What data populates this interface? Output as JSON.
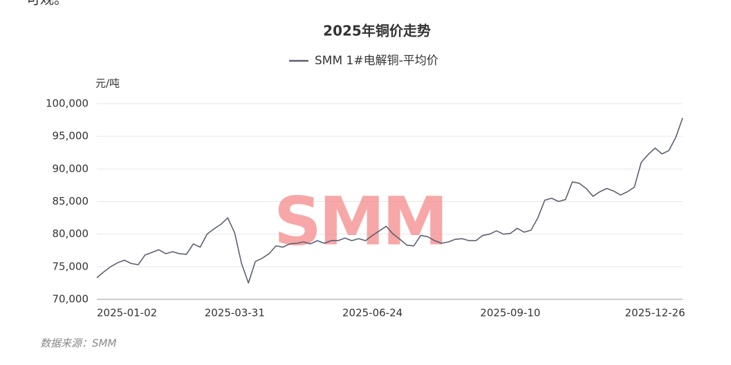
{
  "page_fragment": "可观。",
  "chart_data": {
    "type": "line",
    "title": "2025年铜价走势",
    "y_unit_label": "元/吨",
    "source": "数据来源：SMM",
    "watermark": "SMM",
    "categories": [
      "2025-01-02",
      null,
      null,
      null,
      null,
      null,
      null,
      null,
      null,
      null,
      null,
      null,
      null,
      null,
      null,
      null,
      null,
      null,
      null,
      null,
      "2025-03-31",
      null,
      null,
      null,
      null,
      null,
      null,
      null,
      null,
      null,
      null,
      null,
      null,
      null,
      null,
      null,
      null,
      null,
      null,
      null,
      "2025-06-24",
      null,
      null,
      null,
      null,
      null,
      null,
      null,
      null,
      null,
      null,
      null,
      null,
      null,
      null,
      null,
      null,
      null,
      null,
      null,
      "2025-09-10",
      null,
      null,
      null,
      null,
      null,
      null,
      null,
      null,
      null,
      null,
      null,
      null,
      null,
      null,
      null,
      null,
      null,
      null,
      null,
      null,
      "2025-12-26",
      null,
      null,
      null,
      null
    ],
    "series": [
      {
        "name": "SMM 1#电解铜-平均价",
        "color": "#5b5f71",
        "values": [
          73300,
          74200,
          75000,
          75600,
          76000,
          75500,
          75300,
          76800,
          77200,
          77600,
          77000,
          77300,
          77000,
          76900,
          78500,
          78000,
          80000,
          80800,
          81500,
          82500,
          80200,
          75500,
          72500,
          75800,
          76300,
          77000,
          78200,
          78000,
          78500,
          78600,
          78800,
          78500,
          79000,
          78600,
          79000,
          79000,
          79400,
          79000,
          79300,
          79000,
          79800,
          80500,
          81200,
          80000,
          79200,
          78300,
          78200,
          79800,
          79600,
          79000,
          78600,
          78800,
          79200,
          79300,
          79000,
          79000,
          79800,
          80000,
          80500,
          80000,
          80100,
          80900,
          80300,
          80600,
          82500,
          85200,
          85500,
          85000,
          85300,
          88000,
          87800,
          87000,
          85800,
          86500,
          87000,
          86600,
          86000,
          86500,
          87200,
          91000,
          92200,
          93200,
          92300,
          92800,
          94800,
          97800
        ]
      }
    ],
    "ylim": [
      70000,
      100000
    ],
    "yticks": [
      {
        "value": 70000,
        "label": "70,000"
      },
      {
        "value": 75000,
        "label": "75,000"
      },
      {
        "value": 80000,
        "label": "80,000"
      },
      {
        "value": 85000,
        "label": "85,000"
      },
      {
        "value": 90000,
        "label": "90,000"
      },
      {
        "value": 95000,
        "label": "95,000"
      },
      {
        "value": 100000,
        "label": "100,000"
      }
    ],
    "grid": true
  }
}
